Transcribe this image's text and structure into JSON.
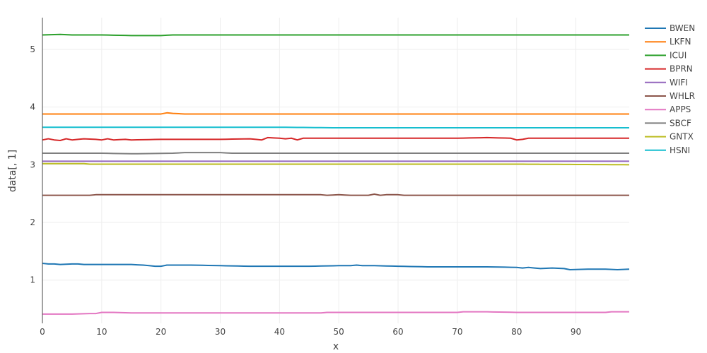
{
  "chart_data": {
    "type": "line",
    "title": "",
    "xlabel": "x",
    "ylabel": "data[, 1]",
    "xlim": [
      0,
      99
    ],
    "ylim": [
      0.25,
      5.55
    ],
    "x_ticks": [
      0,
      10,
      20,
      30,
      40,
      50,
      60,
      70,
      80,
      90
    ],
    "y_ticks": [
      1,
      2,
      3,
      4,
      5
    ],
    "grid": true,
    "legend": "top-right",
    "x_start": 0,
    "x_end": 99,
    "series": [
      {
        "name": "BWEN",
        "color": "#1f77b4",
        "keypoints": [
          [
            0,
            1.29
          ],
          [
            1,
            1.28
          ],
          [
            2,
            1.28
          ],
          [
            3,
            1.27
          ],
          [
            5,
            1.28
          ],
          [
            6,
            1.28
          ],
          [
            7,
            1.27
          ],
          [
            10,
            1.27
          ],
          [
            15,
            1.27
          ],
          [
            17,
            1.26
          ],
          [
            19,
            1.24
          ],
          [
            20,
            1.24
          ],
          [
            21,
            1.26
          ],
          [
            25,
            1.26
          ],
          [
            30,
            1.25
          ],
          [
            35,
            1.24
          ],
          [
            40,
            1.24
          ],
          [
            45,
            1.24
          ],
          [
            50,
            1.25
          ],
          [
            52,
            1.25
          ],
          [
            53,
            1.26
          ],
          [
            54,
            1.25
          ],
          [
            56,
            1.25
          ],
          [
            60,
            1.24
          ],
          [
            65,
            1.23
          ],
          [
            70,
            1.23
          ],
          [
            75,
            1.23
          ],
          [
            80,
            1.22
          ],
          [
            81,
            1.21
          ],
          [
            82,
            1.22
          ],
          [
            84,
            1.2
          ],
          [
            86,
            1.21
          ],
          [
            88,
            1.2
          ],
          [
            89,
            1.18
          ],
          [
            92,
            1.19
          ],
          [
            95,
            1.19
          ],
          [
            97,
            1.18
          ],
          [
            99,
            1.19
          ]
        ]
      },
      {
        "name": "LKFN",
        "color": "#ff7f0e",
        "keypoints": [
          [
            0,
            3.88
          ],
          [
            10,
            3.88
          ],
          [
            15,
            3.88
          ],
          [
            20,
            3.88
          ],
          [
            21,
            3.9
          ],
          [
            22,
            3.89
          ],
          [
            24,
            3.88
          ],
          [
            30,
            3.88
          ],
          [
            40,
            3.88
          ],
          [
            50,
            3.88
          ],
          [
            60,
            3.88
          ],
          [
            70,
            3.88
          ],
          [
            80,
            3.88
          ],
          [
            90,
            3.88
          ],
          [
            99,
            3.88
          ]
        ]
      },
      {
        "name": "ICUI",
        "color": "#2ca02c",
        "keypoints": [
          [
            0,
            5.25
          ],
          [
            3,
            5.26
          ],
          [
            5,
            5.25
          ],
          [
            10,
            5.25
          ],
          [
            15,
            5.24
          ],
          [
            20,
            5.24
          ],
          [
            22,
            5.25
          ],
          [
            30,
            5.25
          ],
          [
            40,
            5.25
          ],
          [
            50,
            5.25
          ],
          [
            60,
            5.25
          ],
          [
            70,
            5.25
          ],
          [
            80,
            5.25
          ],
          [
            90,
            5.25
          ],
          [
            99,
            5.25
          ]
        ]
      },
      {
        "name": "BPRN",
        "color": "#d62728",
        "keypoints": [
          [
            0,
            3.43
          ],
          [
            1,
            3.45
          ],
          [
            2,
            3.43
          ],
          [
            3,
            3.42
          ],
          [
            4,
            3.45
          ],
          [
            5,
            3.43
          ],
          [
            7,
            3.45
          ],
          [
            9,
            3.44
          ],
          [
            10,
            3.43
          ],
          [
            11,
            3.45
          ],
          [
            12,
            3.43
          ],
          [
            14,
            3.44
          ],
          [
            15,
            3.43
          ],
          [
            20,
            3.44
          ],
          [
            25,
            3.44
          ],
          [
            30,
            3.44
          ],
          [
            35,
            3.45
          ],
          [
            37,
            3.43
          ],
          [
            38,
            3.47
          ],
          [
            40,
            3.46
          ],
          [
            41,
            3.45
          ],
          [
            42,
            3.46
          ],
          [
            43,
            3.43
          ],
          [
            44,
            3.46
          ],
          [
            50,
            3.46
          ],
          [
            60,
            3.46
          ],
          [
            70,
            3.46
          ],
          [
            75,
            3.47
          ],
          [
            79,
            3.46
          ],
          [
            80,
            3.43
          ],
          [
            81,
            3.44
          ],
          [
            82,
            3.46
          ],
          [
            90,
            3.46
          ],
          [
            99,
            3.46
          ]
        ]
      },
      {
        "name": "WIFI",
        "color": "#9467bd",
        "keypoints": [
          [
            0,
            3.06
          ],
          [
            20,
            3.06
          ],
          [
            40,
            3.06
          ],
          [
            60,
            3.06
          ],
          [
            80,
            3.06
          ],
          [
            99,
            3.06
          ]
        ]
      },
      {
        "name": "WHLR",
        "color": "#8c564b",
        "keypoints": [
          [
            0,
            2.47
          ],
          [
            8,
            2.47
          ],
          [
            9,
            2.48
          ],
          [
            20,
            2.48
          ],
          [
            30,
            2.48
          ],
          [
            40,
            2.48
          ],
          [
            47,
            2.48
          ],
          [
            48,
            2.47
          ],
          [
            50,
            2.48
          ],
          [
            52,
            2.47
          ],
          [
            55,
            2.47
          ],
          [
            56,
            2.49
          ],
          [
            57,
            2.47
          ],
          [
            58,
            2.48
          ],
          [
            60,
            2.48
          ],
          [
            61,
            2.47
          ],
          [
            70,
            2.47
          ],
          [
            80,
            2.47
          ],
          [
            90,
            2.47
          ],
          [
            99,
            2.47
          ]
        ]
      },
      {
        "name": "APPS",
        "color": "#e377c2",
        "keypoints": [
          [
            0,
            0.41
          ],
          [
            5,
            0.41
          ],
          [
            8,
            0.42
          ],
          [
            9,
            0.42
          ],
          [
            10,
            0.44
          ],
          [
            12,
            0.44
          ],
          [
            15,
            0.43
          ],
          [
            20,
            0.43
          ],
          [
            25,
            0.43
          ],
          [
            30,
            0.43
          ],
          [
            40,
            0.43
          ],
          [
            47,
            0.43
          ],
          [
            48,
            0.44
          ],
          [
            55,
            0.44
          ],
          [
            60,
            0.44
          ],
          [
            70,
            0.44
          ],
          [
            71,
            0.45
          ],
          [
            75,
            0.45
          ],
          [
            80,
            0.44
          ],
          [
            85,
            0.44
          ],
          [
            90,
            0.44
          ],
          [
            95,
            0.44
          ],
          [
            96,
            0.45
          ],
          [
            99,
            0.45
          ]
        ]
      },
      {
        "name": "SBCF",
        "color": "#7f7f7f",
        "keypoints": [
          [
            0,
            3.2
          ],
          [
            10,
            3.2
          ],
          [
            15,
            3.19
          ],
          [
            22,
            3.2
          ],
          [
            24,
            3.21
          ],
          [
            30,
            3.21
          ],
          [
            32,
            3.2
          ],
          [
            40,
            3.2
          ],
          [
            60,
            3.2
          ],
          [
            80,
            3.2
          ],
          [
            99,
            3.2
          ]
        ]
      },
      {
        "name": "GNTX",
        "color": "#bcbd22",
        "keypoints": [
          [
            0,
            3.02
          ],
          [
            7,
            3.02
          ],
          [
            8,
            3.01
          ],
          [
            20,
            3.01
          ],
          [
            40,
            3.01
          ],
          [
            60,
            3.01
          ],
          [
            80,
            3.01
          ],
          [
            99,
            3.0
          ]
        ]
      },
      {
        "name": "HSNI",
        "color": "#17becf",
        "keypoints": [
          [
            0,
            3.65
          ],
          [
            20,
            3.65
          ],
          [
            40,
            3.65
          ],
          [
            50,
            3.64
          ],
          [
            60,
            3.64
          ],
          [
            80,
            3.64
          ],
          [
            99,
            3.64
          ]
        ]
      }
    ]
  }
}
